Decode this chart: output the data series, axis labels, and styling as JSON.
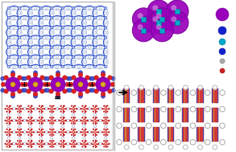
{
  "fig_width": 2.93,
  "fig_height": 1.89,
  "dpi": 100,
  "bg_color": "#ffffff",
  "pom_purple": "#9900bb",
  "pom_purple_dark": "#770099",
  "pom_purple_light": "#cc44dd",
  "pillar_blue": "#1122cc",
  "node_cyan": "#00aacc",
  "linker_blue": "#3355cc",
  "linker_light": "#aabbdd",
  "node_light": "#ccd5ee",
  "red_color": "#cc2222",
  "red_dark": "#aa1111",
  "blue_color": "#2244cc",
  "gray_color": "#999999",
  "yellow_color": "#ccaa33",
  "divider_color": "#999999",
  "arrow_color": "#111111"
}
